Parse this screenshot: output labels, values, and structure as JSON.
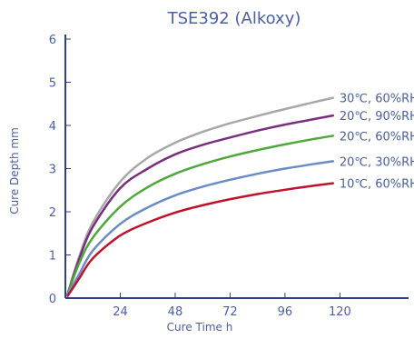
{
  "chart_data": {
    "type": "line",
    "title": "TSE392 (Alkoxy)",
    "xlabel": "Cure Time  h",
    "ylabel": "Cure Depth  mm",
    "xlim": [
      0,
      150
    ],
    "ylim": [
      0,
      6
    ],
    "x_ticks": [
      24,
      48,
      72,
      96,
      120
    ],
    "y_ticks": [
      0,
      1,
      2,
      3,
      4,
      5,
      6
    ],
    "grid": false,
    "legend": "inline labels at line ends",
    "x": [
      1,
      6,
      12,
      24,
      36,
      48,
      60,
      72,
      84,
      96,
      108,
      117
    ],
    "series": [
      {
        "name": "30℃, 60%RH",
        "color": "#a8a8a8",
        "values": [
          0.1,
          0.95,
          1.75,
          2.7,
          3.25,
          3.6,
          3.85,
          4.05,
          4.22,
          4.38,
          4.53,
          4.64
        ]
      },
      {
        "name": "20℃, 90%RH",
        "color": "#7a2f7e",
        "values": [
          0.1,
          0.9,
          1.65,
          2.55,
          3.0,
          3.33,
          3.55,
          3.72,
          3.88,
          4.02,
          4.14,
          4.23
        ]
      },
      {
        "name": "20℃, 60%RH",
        "color": "#4ea83a",
        "values": [
          0.1,
          0.8,
          1.4,
          2.12,
          2.57,
          2.88,
          3.1,
          3.28,
          3.43,
          3.56,
          3.68,
          3.76
        ]
      },
      {
        "name": "20℃, 30%RH",
        "color": "#6a8bc7",
        "values": [
          0.08,
          0.55,
          1.1,
          1.72,
          2.1,
          2.38,
          2.58,
          2.74,
          2.88,
          3.0,
          3.1,
          3.17
        ]
      },
      {
        "name": "10℃, 60%RH",
        "color": "#c0122c",
        "values": [
          0.05,
          0.45,
          0.92,
          1.45,
          1.75,
          1.98,
          2.15,
          2.29,
          2.41,
          2.51,
          2.6,
          2.66
        ]
      }
    ]
  }
}
